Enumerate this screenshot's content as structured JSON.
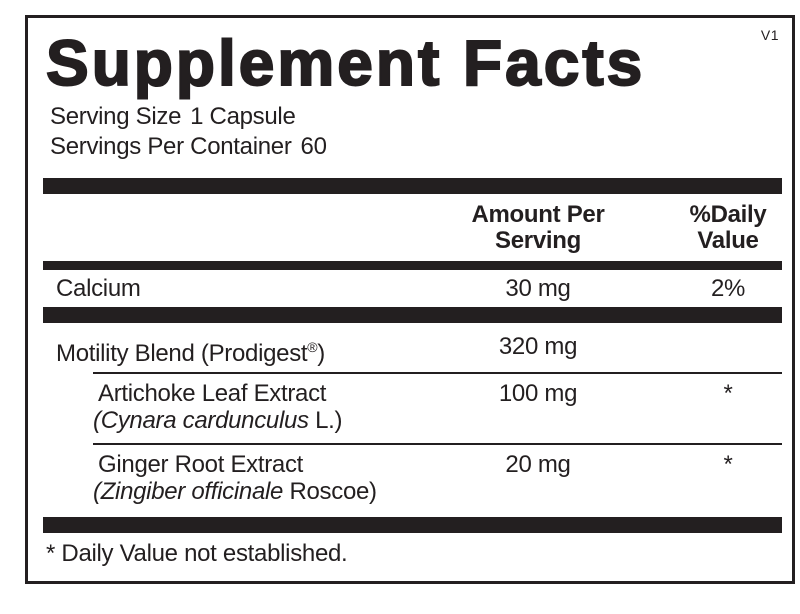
{
  "supplement": {
    "version": "V1",
    "title": "Supplement Facts",
    "serving_size": {
      "label": "Serving Size",
      "value": "1 Capsule"
    },
    "servings_per_container": {
      "label": "Servings Per Container",
      "value": "60"
    },
    "header": {
      "amount_line1": "Amount Per",
      "amount_line2": "Serving",
      "dv_line1": "%Daily",
      "dv_line2": "Value"
    },
    "rows": [
      {
        "name": "Calcium",
        "amount": "30 mg",
        "dv": "2%"
      },
      {
        "name_pre": "Motility Blend (Prodigest",
        "name_reg": "®",
        "name_post": ")",
        "amount": "320 mg",
        "dv": ""
      },
      {
        "name": "Artichoke Leaf Extract",
        "latin_italic": "(Cynara cardunculus",
        "latin_roman": " L.)",
        "amount": "100 mg",
        "dv": "*"
      },
      {
        "name": "Ginger Root Extract",
        "latin_italic": "(Zingiber officinale",
        "latin_roman": " Roscoe)",
        "amount": "20 mg",
        "dv": "*"
      }
    ],
    "footnote": "* Daily Value not established.",
    "colors": {
      "ink": "#231f20",
      "background": "#ffffff"
    }
  }
}
